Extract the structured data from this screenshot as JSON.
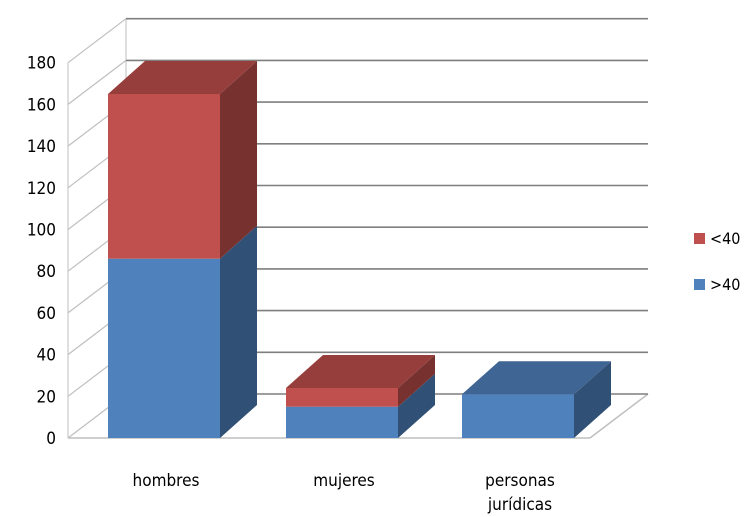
{
  "chart_data": {
    "type": "bar",
    "stacked": true,
    "three_d": true,
    "categories": [
      "hombres",
      "mujeres",
      "personas\njurídicas"
    ],
    "series": [
      {
        "name": ">40",
        "color": "#4f81bd",
        "values": [
          86,
          15,
          21
        ]
      },
      {
        "name": "<40",
        "color": "#c0504d",
        "values": [
          79,
          9,
          0
        ]
      }
    ],
    "ylim": [
      0,
      180
    ],
    "yticks": [
      0,
      20,
      40,
      60,
      80,
      100,
      120,
      140,
      160,
      180
    ],
    "gridlines": true,
    "legend_position": "right",
    "title": "",
    "xlabel": "",
    "ylabel": ""
  }
}
